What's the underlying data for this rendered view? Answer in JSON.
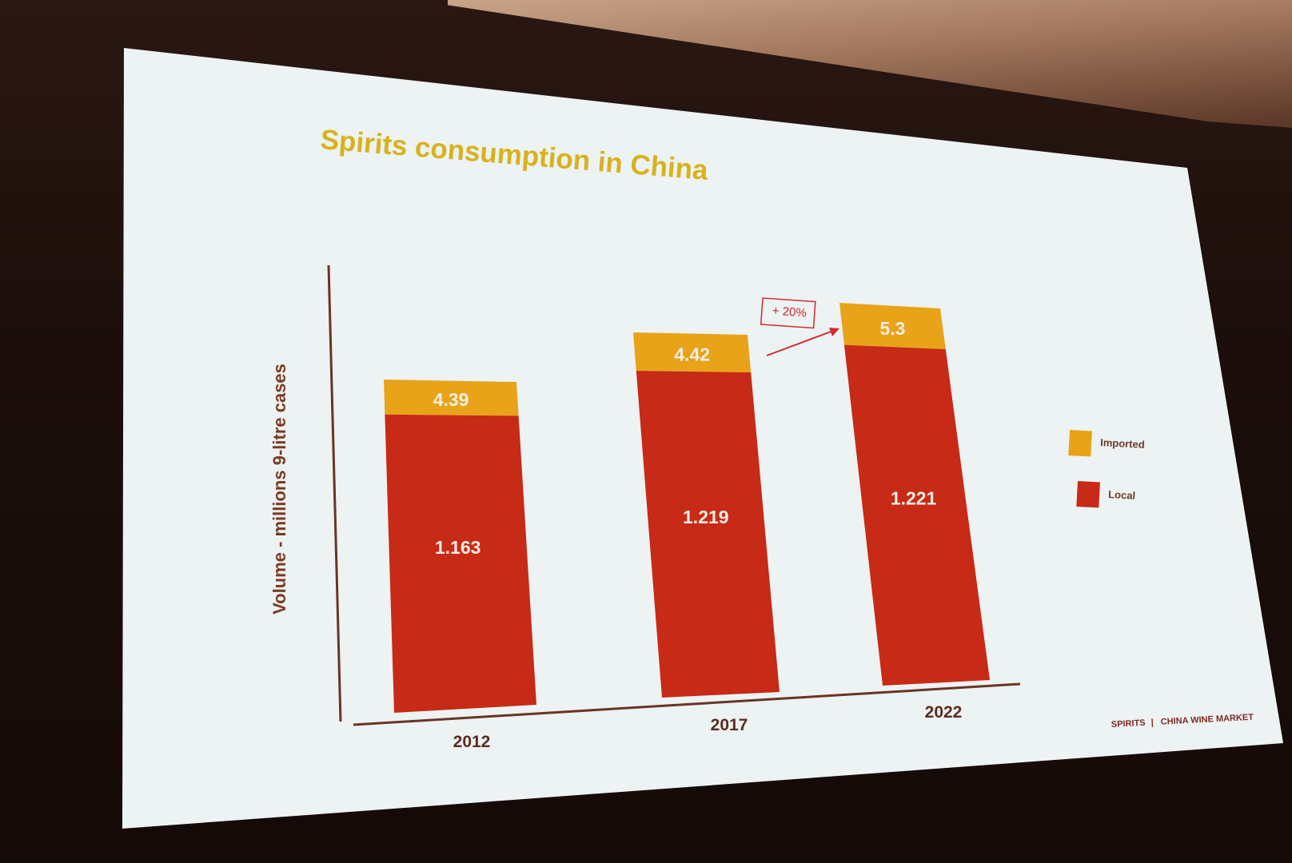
{
  "slide": {
    "title": "Spirits consumption in China",
    "footer_left": "SPIRITS",
    "footer_sep": "|",
    "footer_right": "CHINA WINE MARKET",
    "colors": {
      "imported": "#e8a319",
      "local": "#c72a16",
      "title": "#d8b21c",
      "axis": "#6a3424",
      "annotation": "#d02a2e"
    }
  },
  "chart_data": {
    "type": "bar",
    "stacked": true,
    "categories": [
      "2012",
      "2017",
      "2022"
    ],
    "series": [
      {
        "name": "Local",
        "values": [
          1.163,
          1.219,
          1.221
        ],
        "labels": [
          "1.163",
          "1.219",
          "1.221"
        ]
      },
      {
        "name": "Imported",
        "values": [
          4.39,
          4.42,
          5.3
        ],
        "labels": [
          "4.39",
          "4.42",
          "5.3"
        ]
      }
    ],
    "ylabel": "Volume - millions 9-litre cases",
    "xlabel": "",
    "legend": {
      "placement": "right",
      "entries": [
        "Imported",
        "Local"
      ]
    },
    "annotation": {
      "text": "+ 20%",
      "from": "2017",
      "to": "2022"
    },
    "grid": false
  }
}
